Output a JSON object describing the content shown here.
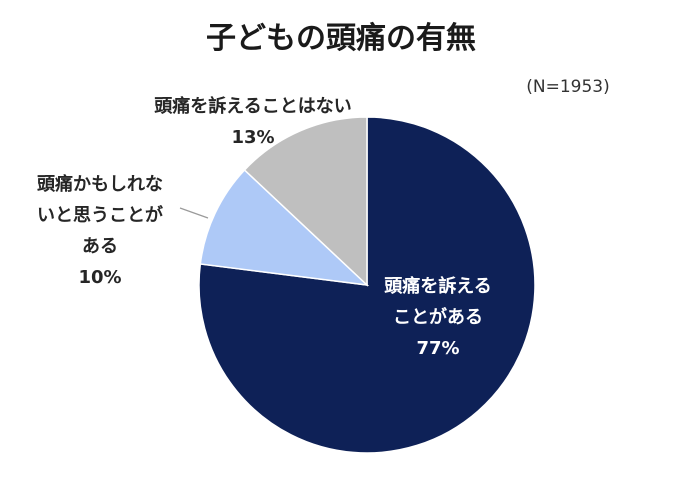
{
  "chart_data": {
    "type": "pie",
    "title": "子どもの頭痛の有無",
    "note": "(N=1953)",
    "start_angle_deg": 0,
    "direction": "clockwise",
    "legend": "none",
    "slices": [
      {
        "label_lines": [
          "頭痛を訴える",
          "ことがある"
        ],
        "value": 77,
        "value_label": "77%",
        "color": "#0e2157",
        "label_color": "#ffffff"
      },
      {
        "label_lines": [
          "頭痛かもしれな",
          "いと思うことが",
          "ある"
        ],
        "value": 10,
        "value_label": "10%",
        "color": "#aec9f7",
        "label_color": "#262626"
      },
      {
        "label_lines": [
          "頭痛を訴えることはない"
        ],
        "value": 13,
        "value_label": "13%",
        "color": "#bfbfbf",
        "label_color": "#262626"
      }
    ]
  }
}
